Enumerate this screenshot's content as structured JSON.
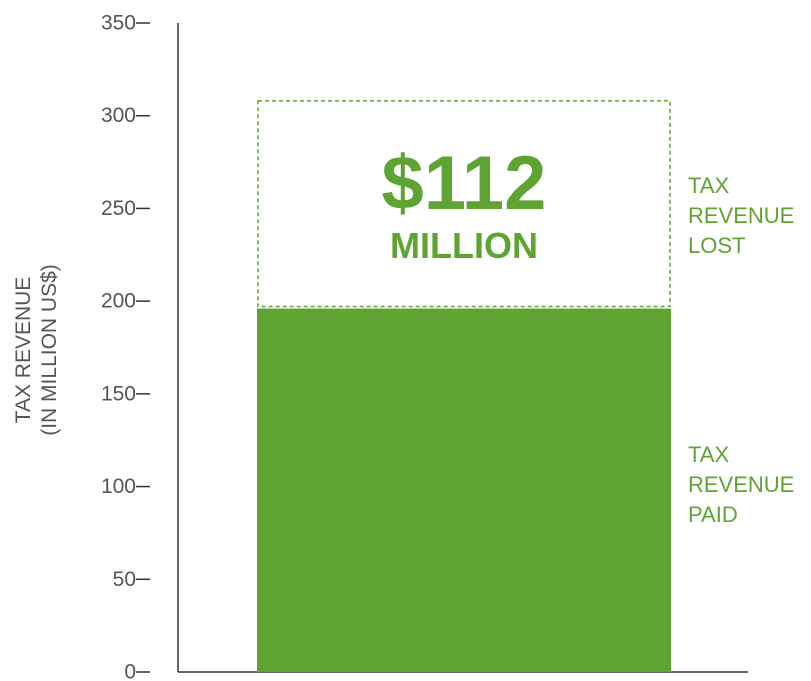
{
  "chart_data": {
    "type": "bar",
    "ylabel_lines": [
      "TAX REVENUE",
      "(IN MILLION US$)"
    ],
    "ylim": [
      0,
      350
    ],
    "yticks": [
      "0",
      "50",
      "100",
      "150",
      "200",
      "250",
      "300",
      "350"
    ],
    "ytick_values": [
      0,
      50,
      100,
      150,
      200,
      250,
      300,
      350
    ],
    "grid": false,
    "series": [
      {
        "role": "paid",
        "value": 196,
        "style": "solid"
      },
      {
        "role": "lost",
        "value": 112,
        "style": "dashed-outline"
      }
    ],
    "annotation": {
      "amount": "$112",
      "unit": "MILLION"
    },
    "labels": {
      "lost": [
        "TAX",
        "REVENUE",
        "LOST"
      ],
      "paid": [
        "TAX",
        "REVENUE",
        "PAID"
      ]
    },
    "colors": {
      "bar": "#5fa433",
      "text": "#5fa433",
      "axis": "#333333"
    }
  }
}
